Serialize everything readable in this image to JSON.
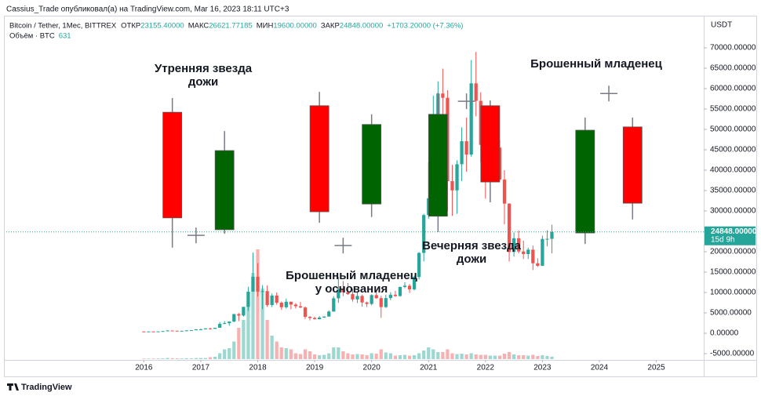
{
  "header": {
    "credit": "Cassius_Trade опубликовал(а) на TradingView.com, Mar 16, 2023 18:11 UTC+3"
  },
  "footer": {
    "brand": "TradingView"
  },
  "chart_data": {
    "type": "candlestick",
    "symbol": "Bitcoin / Tether, 1Мес, BITTREX",
    "legend_fields": [
      {
        "label": "ОТКР",
        "value": "23155.40000"
      },
      {
        "label": "МАКС",
        "value": "26621.77185"
      },
      {
        "label": "МИН",
        "value": "19600.00000"
      },
      {
        "label": "ЗАКР",
        "value": "24848.00000"
      }
    ],
    "change": "+1703.20000 (+7.36%)",
    "volume_label": "Объём · BTC",
    "currency": "USDT",
    "countdown": "15d 9h",
    "up_color": "#26a69a",
    "down_color": "#ef5350",
    "x": [
      "2016-01",
      "2016-02",
      "2016-03",
      "2016-04",
      "2016-05",
      "2016-06",
      "2016-07",
      "2016-08",
      "2016-09",
      "2016-10",
      "2016-11",
      "2016-12",
      "2017-01",
      "2017-02",
      "2017-03",
      "2017-04",
      "2017-05",
      "2017-06",
      "2017-07",
      "2017-08",
      "2017-09",
      "2017-10",
      "2017-11",
      "2017-12",
      "2018-01",
      "2018-02",
      "2018-03",
      "2018-04",
      "2018-05",
      "2018-06",
      "2018-07",
      "2018-08",
      "2018-09",
      "2018-10",
      "2018-11",
      "2018-12",
      "2019-01",
      "2019-02",
      "2019-03",
      "2019-04",
      "2019-05",
      "2019-06",
      "2019-07",
      "2019-08",
      "2019-09",
      "2019-10",
      "2019-11",
      "2019-12",
      "2020-01",
      "2020-02",
      "2020-03",
      "2020-04",
      "2020-05",
      "2020-06",
      "2020-07",
      "2020-08",
      "2020-09",
      "2020-10",
      "2020-11",
      "2020-12",
      "2021-01",
      "2021-02",
      "2021-03",
      "2021-04",
      "2021-05",
      "2021-06",
      "2021-07",
      "2021-08",
      "2021-09",
      "2021-10",
      "2021-11",
      "2021-12",
      "2022-01",
      "2022-02",
      "2022-03",
      "2022-04",
      "2022-05",
      "2022-06",
      "2022-07",
      "2022-08",
      "2022-09",
      "2022-10",
      "2022-11",
      "2022-12",
      "2023-01",
      "2023-02",
      "2023-03"
    ],
    "open": [
      430,
      368,
      437,
      416,
      448,
      531,
      673,
      624,
      575,
      609,
      698,
      742,
      963,
      970,
      1190,
      1080,
      1348,
      2300,
      2480,
      2875,
      4700,
      4340,
      6470,
      10200,
      13860,
      10220,
      10330,
      6930,
      9240,
      7490,
      6390,
      7730,
      7030,
      6620,
      6320,
      4020,
      3740,
      3460,
      3850,
      4100,
      5320,
      8570,
      10820,
      10080,
      9600,
      8300,
      9150,
      7560,
      7190,
      9350,
      8600,
      6420,
      8620,
      9450,
      9140,
      11350,
      11650,
      10780,
      13800,
      19700,
      28990,
      33100,
      45200,
      58800,
      57750,
      37300,
      35040,
      41460,
      47100,
      43820,
      61300,
      57000,
      46200,
      38480,
      43190,
      45540,
      37710,
      31790,
      19940,
      23300,
      20050,
      19430,
      20490,
      17170,
      16540,
      23130,
      23155.4
    ],
    "high": [
      465,
      448,
      439,
      470,
      550,
      780,
      680,
      625,
      612,
      740,
      752,
      975,
      1150,
      1210,
      1350,
      1350,
      2760,
      3000,
      2930,
      4750,
      4980,
      6470,
      11400,
      19800,
      17200,
      11800,
      11700,
      9750,
      10000,
      7770,
      8500,
      7760,
      7400,
      7680,
      6550,
      4200,
      4070,
      4200,
      4150,
      5620,
      9080,
      13800,
      12800,
      12300,
      10900,
      10300,
      9500,
      7750,
      9580,
      10500,
      9200,
      9480,
      10080,
      10400,
      11450,
      12500,
      12070,
      14100,
      19900,
      29300,
      41900,
      58300,
      61800,
      64900,
      59600,
      41300,
      42400,
      50500,
      52900,
      67000,
      69000,
      59100,
      47900,
      45800,
      48200,
      47400,
      40000,
      31900,
      24700,
      25200,
      22700,
      21000,
      21500,
      18400,
      23950,
      25250,
      26621.77185
    ],
    "low": [
      350,
      367,
      394,
      412,
      440,
      530,
      580,
      465,
      570,
      605,
      690,
      740,
      750,
      920,
      890,
      1060,
      1350,
      2200,
      1840,
      2700,
      2970,
      4110,
      5500,
      10900,
      9000,
      5900,
      6450,
      6430,
      7000,
      5750,
      6060,
      5880,
      6100,
      6160,
      3500,
      3150,
      3350,
      3400,
      3750,
      4080,
      5300,
      7450,
      9100,
      9400,
      7750,
      7400,
      6520,
      6420,
      6850,
      8450,
      3800,
      6200,
      8130,
      8900,
      8950,
      11080,
      9900,
      10500,
      13200,
      17600,
      28100,
      32300,
      44900,
      47000,
      30000,
      28800,
      29300,
      37300,
      39600,
      43300,
      53200,
      42000,
      33000,
      34300,
      37200,
      37400,
      26700,
      17600,
      18800,
      19600,
      18200,
      18200,
      15500,
      16270,
      16490,
      21350,
      19600
    ],
    "close": [
      368,
      437,
      416,
      448,
      531,
      673,
      624,
      575,
      609,
      698,
      742,
      963,
      970,
      1190,
      1080,
      1348,
      2300,
      2480,
      2875,
      4700,
      4340,
      6470,
      10200,
      13860,
      10220,
      10330,
      6930,
      9240,
      7490,
      6390,
      7730,
      7030,
      6620,
      6320,
      4020,
      3740,
      3460,
      3850,
      4100,
      5320,
      8570,
      10820,
      10080,
      9600,
      8300,
      9150,
      7560,
      7190,
      9350,
      8600,
      6420,
      8620,
      9450,
      9140,
      11350,
      11650,
      10780,
      13800,
      19700,
      28990,
      33100,
      45200,
      58800,
      57750,
      37300,
      35040,
      41460,
      47100,
      43820,
      61300,
      57000,
      46200,
      38480,
      43190,
      45540,
      37710,
      31790,
      19940,
      23300,
      20050,
      19430,
      20490,
      17170,
      16540,
      23130,
      23150,
      24848
    ],
    "volume": {
      "values": [
        150,
        150,
        160,
        170,
        200,
        300,
        250,
        200,
        180,
        200,
        220,
        280,
        300,
        300,
        500,
        600,
        1500,
        2500,
        2800,
        4500,
        8000,
        10000,
        15000,
        22000,
        28000,
        18000,
        10000,
        6000,
        4500,
        3000,
        2800,
        2500,
        1500,
        1300,
        2500,
        2000,
        1200,
        1000,
        1100,
        1500,
        3000,
        3000,
        2000,
        1500,
        1200,
        1300,
        1200,
        1000,
        1500,
        1400,
        2500,
        1700,
        1500,
        900,
        1000,
        1100,
        900,
        1000,
        1500,
        2200,
        3000,
        2500,
        1800,
        1800,
        2500,
        1500,
        1300,
        1400,
        1200,
        1500,
        1200,
        1100,
        1100,
        900,
        900,
        900,
        1400,
        1800,
        1200,
        1000,
        1000,
        900,
        1100,
        800,
        1000,
        800,
        631
      ]
    },
    "xlim": [
      "2013-08",
      "2025-11"
    ],
    "xticks": [
      {
        "value": "2016-01",
        "label": "2016"
      },
      {
        "value": "2017-01",
        "label": "2017"
      },
      {
        "value": "2018-01",
        "label": "2018"
      },
      {
        "value": "2019-01",
        "label": "2019"
      },
      {
        "value": "2020-01",
        "label": "2020"
      },
      {
        "value": "2021-01",
        "label": "2021"
      },
      {
        "value": "2022-01",
        "label": "2022"
      },
      {
        "value": "2023-01",
        "label": "2023"
      },
      {
        "value": "2024-01",
        "label": "2024"
      },
      {
        "value": "2025-01",
        "label": "2025"
      }
    ],
    "ylim": [
      -6350,
      77500
    ],
    "yticks": [
      {
        "value": -5000,
        "label": "-5000.00000"
      },
      {
        "value": 0,
        "label": "0.00000"
      },
      {
        "value": 5000,
        "label": "5000.00000"
      },
      {
        "value": 10000,
        "label": "10000.00000"
      },
      {
        "value": 15000,
        "label": "15000.00000"
      },
      {
        "value": 20000,
        "label": "20000.00000"
      },
      {
        "value": 25000,
        "label": "25000.00000"
      },
      {
        "value": 30000,
        "label": "30000.00000"
      },
      {
        "value": 35000,
        "label": "35000.00000"
      },
      {
        "value": 40000,
        "label": "40000.00000"
      },
      {
        "value": 45000,
        "label": "45000.00000"
      },
      {
        "value": 50000,
        "label": "50000.00000"
      },
      {
        "value": 55000,
        "label": "55000.00000"
      },
      {
        "value": 60000,
        "label": "60000.00000"
      },
      {
        "value": 65000,
        "label": "65000.00000"
      },
      {
        "value": 70000,
        "label": "70000.00000"
      }
    ],
    "drawings": [
      {
        "x": "2016-07",
        "open": 54200,
        "high": 57700,
        "low": 21000,
        "close": 28300,
        "color": "#ff0000"
      },
      {
        "x": "2017-06",
        "open": 25400,
        "high": 49600,
        "low": 24400,
        "close": 44800,
        "color": "#006400"
      },
      {
        "x": "2019-02",
        "open": 55800,
        "high": 59200,
        "low": 27100,
        "close": 29800,
        "color": "#ff0000"
      },
      {
        "x": "2020-01",
        "open": 31700,
        "high": 53700,
        "low": 28500,
        "close": 51200,
        "color": "#006400"
      },
      {
        "x": "2021-03",
        "open": 28700,
        "high": 59000,
        "low": 24800,
        "close": 53700,
        "color": "#006400"
      },
      {
        "x": "2022-02",
        "open": 55800,
        "high": 57100,
        "low": 32100,
        "close": 37100,
        "color": "#ff0000"
      },
      {
        "x": "2023-10",
        "open": 24600,
        "high": 52900,
        "low": 21900,
        "close": 49800,
        "color": "#006400"
      },
      {
        "x": "2024-08",
        "open": 50600,
        "high": 52900,
        "low": 27900,
        "close": 31900,
        "color": "#ff0000"
      }
    ],
    "crosses": [
      {
        "x": "2016-12",
        "price": 24000
      },
      {
        "x": "2019-07",
        "price": 21500
      },
      {
        "x": "2021-09",
        "price": 56900
      },
      {
        "x": "2024-03",
        "price": 58800
      }
    ],
    "annotations": [
      {
        "lines": [
          "Утренняя звезда",
          "дожи"
        ]
      },
      {
        "lines": [
          "Брошенный младенец",
          "у основания"
        ]
      },
      {
        "lines": [
          "Вечерняя звезда",
          "дожи"
        ]
      },
      {
        "lines": [
          "Брошенный младенец"
        ]
      }
    ]
  }
}
